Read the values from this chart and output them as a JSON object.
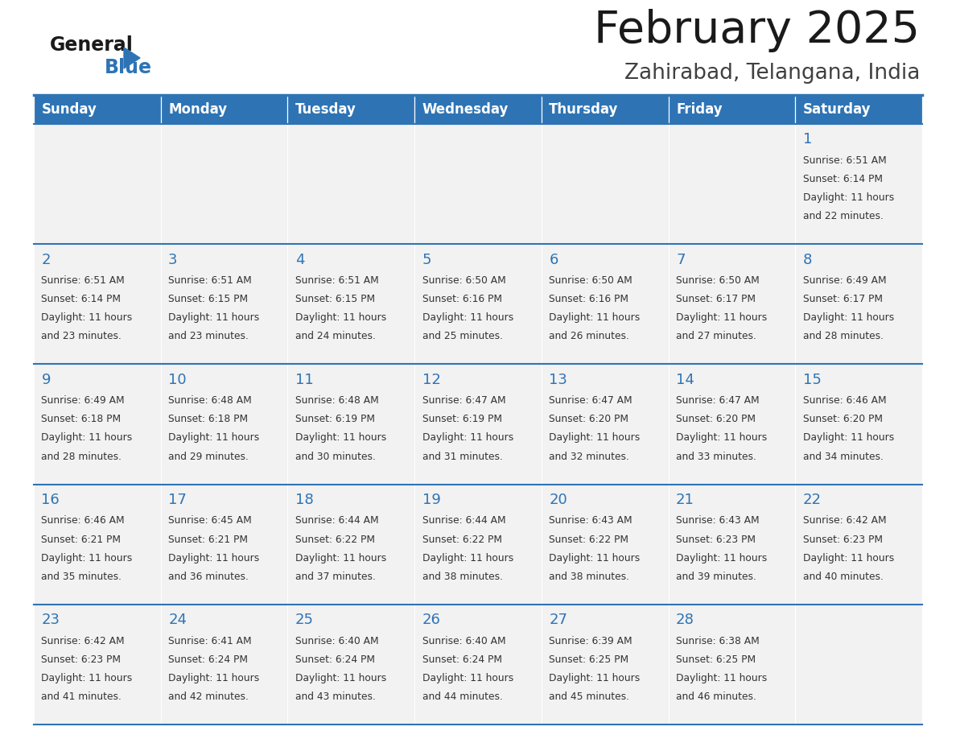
{
  "title": "February 2025",
  "subtitle": "Zahirabad, Telangana, India",
  "header_bg": "#2E74B5",
  "header_text_color": "#FFFFFF",
  "cell_bg": "#F2F2F2",
  "border_color": "#2E74B5",
  "days_of_week": [
    "Sunday",
    "Monday",
    "Tuesday",
    "Wednesday",
    "Thursday",
    "Friday",
    "Saturday"
  ],
  "day_number_color": "#2E74B5",
  "cell_text_color": "#333333",
  "calendar_data": [
    [
      null,
      null,
      null,
      null,
      null,
      null,
      {
        "day": 1,
        "sunrise": "6:51 AM",
        "sunset": "6:14 PM",
        "daylight_h": "11 hours",
        "daylight_m": "22 minutes"
      }
    ],
    [
      {
        "day": 2,
        "sunrise": "6:51 AM",
        "sunset": "6:14 PM",
        "daylight_h": "11 hours",
        "daylight_m": "23 minutes"
      },
      {
        "day": 3,
        "sunrise": "6:51 AM",
        "sunset": "6:15 PM",
        "daylight_h": "11 hours",
        "daylight_m": "23 minutes"
      },
      {
        "day": 4,
        "sunrise": "6:51 AM",
        "sunset": "6:15 PM",
        "daylight_h": "11 hours",
        "daylight_m": "24 minutes"
      },
      {
        "day": 5,
        "sunrise": "6:50 AM",
        "sunset": "6:16 PM",
        "daylight_h": "11 hours",
        "daylight_m": "25 minutes"
      },
      {
        "day": 6,
        "sunrise": "6:50 AM",
        "sunset": "6:16 PM",
        "daylight_h": "11 hours",
        "daylight_m": "26 minutes"
      },
      {
        "day": 7,
        "sunrise": "6:50 AM",
        "sunset": "6:17 PM",
        "daylight_h": "11 hours",
        "daylight_m": "27 minutes"
      },
      {
        "day": 8,
        "sunrise": "6:49 AM",
        "sunset": "6:17 PM",
        "daylight_h": "11 hours",
        "daylight_m": "28 minutes"
      }
    ],
    [
      {
        "day": 9,
        "sunrise": "6:49 AM",
        "sunset": "6:18 PM",
        "daylight_h": "11 hours",
        "daylight_m": "28 minutes"
      },
      {
        "day": 10,
        "sunrise": "6:48 AM",
        "sunset": "6:18 PM",
        "daylight_h": "11 hours",
        "daylight_m": "29 minutes"
      },
      {
        "day": 11,
        "sunrise": "6:48 AM",
        "sunset": "6:19 PM",
        "daylight_h": "11 hours",
        "daylight_m": "30 minutes"
      },
      {
        "day": 12,
        "sunrise": "6:47 AM",
        "sunset": "6:19 PM",
        "daylight_h": "11 hours",
        "daylight_m": "31 minutes"
      },
      {
        "day": 13,
        "sunrise": "6:47 AM",
        "sunset": "6:20 PM",
        "daylight_h": "11 hours",
        "daylight_m": "32 minutes"
      },
      {
        "day": 14,
        "sunrise": "6:47 AM",
        "sunset": "6:20 PM",
        "daylight_h": "11 hours",
        "daylight_m": "33 minutes"
      },
      {
        "day": 15,
        "sunrise": "6:46 AM",
        "sunset": "6:20 PM",
        "daylight_h": "11 hours",
        "daylight_m": "34 minutes"
      }
    ],
    [
      {
        "day": 16,
        "sunrise": "6:46 AM",
        "sunset": "6:21 PM",
        "daylight_h": "11 hours",
        "daylight_m": "35 minutes"
      },
      {
        "day": 17,
        "sunrise": "6:45 AM",
        "sunset": "6:21 PM",
        "daylight_h": "11 hours",
        "daylight_m": "36 minutes"
      },
      {
        "day": 18,
        "sunrise": "6:44 AM",
        "sunset": "6:22 PM",
        "daylight_h": "11 hours",
        "daylight_m": "37 minutes"
      },
      {
        "day": 19,
        "sunrise": "6:44 AM",
        "sunset": "6:22 PM",
        "daylight_h": "11 hours",
        "daylight_m": "38 minutes"
      },
      {
        "day": 20,
        "sunrise": "6:43 AM",
        "sunset": "6:22 PM",
        "daylight_h": "11 hours",
        "daylight_m": "38 minutes"
      },
      {
        "day": 21,
        "sunrise": "6:43 AM",
        "sunset": "6:23 PM",
        "daylight_h": "11 hours",
        "daylight_m": "39 minutes"
      },
      {
        "day": 22,
        "sunrise": "6:42 AM",
        "sunset": "6:23 PM",
        "daylight_h": "11 hours",
        "daylight_m": "40 minutes"
      }
    ],
    [
      {
        "day": 23,
        "sunrise": "6:42 AM",
        "sunset": "6:23 PM",
        "daylight_h": "11 hours",
        "daylight_m": "41 minutes"
      },
      {
        "day": 24,
        "sunrise": "6:41 AM",
        "sunset": "6:24 PM",
        "daylight_h": "11 hours",
        "daylight_m": "42 minutes"
      },
      {
        "day": 25,
        "sunrise": "6:40 AM",
        "sunset": "6:24 PM",
        "daylight_h": "11 hours",
        "daylight_m": "43 minutes"
      },
      {
        "day": 26,
        "sunrise": "6:40 AM",
        "sunset": "6:24 PM",
        "daylight_h": "11 hours",
        "daylight_m": "44 minutes"
      },
      {
        "day": 27,
        "sunrise": "6:39 AM",
        "sunset": "6:25 PM",
        "daylight_h": "11 hours",
        "daylight_m": "45 minutes"
      },
      {
        "day": 28,
        "sunrise": "6:38 AM",
        "sunset": "6:25 PM",
        "daylight_h": "11 hours",
        "daylight_m": "46 minutes"
      },
      null
    ]
  ]
}
